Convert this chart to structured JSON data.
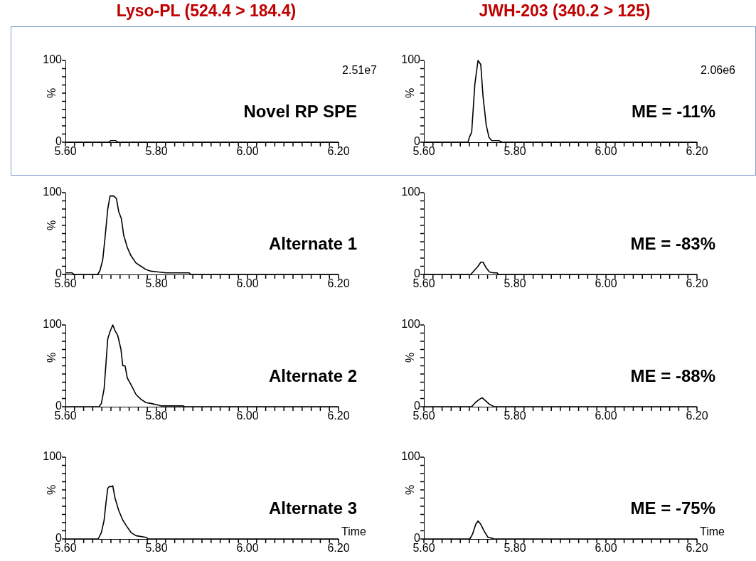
{
  "chart_data": [
    {
      "type": "line",
      "title": "Lyso-PL (524.4 > 184.4)",
      "ylabel": "%",
      "annotations": [
        "2.51e7",
        "Novel RP SPE"
      ],
      "xlim": [
        5.6,
        6.2
      ],
      "ylim": [
        0,
        100
      ],
      "xticks": [
        {
          "value": 5.6,
          "label": "5.60"
        },
        {
          "value": 5.62,
          "label": null
        },
        {
          "value": 5.64,
          "label": null
        },
        {
          "value": 5.66,
          "label": null
        },
        {
          "value": 5.68,
          "label": null
        },
        {
          "value": 5.7,
          "label": null
        },
        {
          "value": 5.72,
          "label": null
        },
        {
          "value": 5.74,
          "label": null
        },
        {
          "value": 5.76,
          "label": null
        },
        {
          "value": 5.78,
          "label": null
        },
        {
          "value": 5.8,
          "label": "5.80"
        },
        {
          "value": 5.82,
          "label": null
        },
        {
          "value": 5.84,
          "label": null
        },
        {
          "value": 5.86,
          "label": null
        },
        {
          "value": 5.88,
          "label": null
        },
        {
          "value": 5.9,
          "label": null
        },
        {
          "value": 5.92,
          "label": null
        },
        {
          "value": 5.94,
          "label": null
        },
        {
          "value": 5.96,
          "label": null
        },
        {
          "value": 5.98,
          "label": null
        },
        {
          "value": 6.0,
          "label": "6.00"
        },
        {
          "value": 6.02,
          "label": null
        },
        {
          "value": 6.04,
          "label": null
        },
        {
          "value": 6.06,
          "label": null
        },
        {
          "value": 6.08,
          "label": null
        },
        {
          "value": 6.1,
          "label": null
        },
        {
          "value": 6.12,
          "label": null
        },
        {
          "value": 6.14,
          "label": null
        },
        {
          "value": 6.16,
          "label": null
        },
        {
          "value": 6.18,
          "label": null
        },
        {
          "value": 6.2,
          "label": "6.20"
        }
      ],
      "yticks": [
        {
          "value": 0,
          "label": "0"
        },
        {
          "value": 10,
          "label": null
        },
        {
          "value": 20,
          "label": null
        },
        {
          "value": 30,
          "label": null
        },
        {
          "value": 40,
          "label": null
        },
        {
          "value": 50,
          "label": null
        },
        {
          "value": 60,
          "label": null
        },
        {
          "value": 70,
          "label": null
        },
        {
          "value": 80,
          "label": null
        },
        {
          "value": 90,
          "label": null
        },
        {
          "value": 100,
          "label": "100"
        }
      ],
      "grid": false,
      "legend": false,
      "marker": "none",
      "series": [
        {
          "color": "#000000",
          "x": [
            5.6,
            5.695,
            5.7,
            5.71,
            5.715,
            6.2
          ],
          "values": [
            0,
            0,
            2,
            2,
            0,
            0
          ]
        }
      ]
    },
    {
      "type": "line",
      "title": "JWH-203 (340.2 > 125)",
      "ylabel": "%",
      "annotations": [
        "2.06e6",
        "ME = -11%"
      ],
      "xlim": [
        5.6,
        6.2
      ],
      "ylim": [
        0,
        100
      ],
      "xticks": [
        {
          "value": 5.6,
          "label": "5.60"
        },
        {
          "value": 5.62,
          "label": null
        },
        {
          "value": 5.64,
          "label": null
        },
        {
          "value": 5.66,
          "label": null
        },
        {
          "value": 5.68,
          "label": null
        },
        {
          "value": 5.7,
          "label": null
        },
        {
          "value": 5.72,
          "label": null
        },
        {
          "value": 5.74,
          "label": null
        },
        {
          "value": 5.76,
          "label": null
        },
        {
          "value": 5.78,
          "label": null
        },
        {
          "value": 5.8,
          "label": "5.80"
        },
        {
          "value": 5.82,
          "label": null
        },
        {
          "value": 5.84,
          "label": null
        },
        {
          "value": 5.86,
          "label": null
        },
        {
          "value": 5.88,
          "label": null
        },
        {
          "value": 5.9,
          "label": null
        },
        {
          "value": 5.92,
          "label": null
        },
        {
          "value": 5.94,
          "label": null
        },
        {
          "value": 5.96,
          "label": null
        },
        {
          "value": 5.98,
          "label": null
        },
        {
          "value": 6.0,
          "label": "6.00"
        },
        {
          "value": 6.02,
          "label": null
        },
        {
          "value": 6.04,
          "label": null
        },
        {
          "value": 6.06,
          "label": null
        },
        {
          "value": 6.08,
          "label": null
        },
        {
          "value": 6.1,
          "label": null
        },
        {
          "value": 6.12,
          "label": null
        },
        {
          "value": 6.14,
          "label": null
        },
        {
          "value": 6.16,
          "label": null
        },
        {
          "value": 6.18,
          "label": null
        },
        {
          "value": 6.2,
          "label": "6.20"
        }
      ],
      "yticks": [
        {
          "value": 0,
          "label": "0"
        },
        {
          "value": 10,
          "label": null
        },
        {
          "value": 20,
          "label": null
        },
        {
          "value": 30,
          "label": null
        },
        {
          "value": 40,
          "label": null
        },
        {
          "value": 50,
          "label": null
        },
        {
          "value": 60,
          "label": null
        },
        {
          "value": 70,
          "label": null
        },
        {
          "value": 80,
          "label": null
        },
        {
          "value": 90,
          "label": null
        },
        {
          "value": 100,
          "label": "100"
        }
      ],
      "grid": false,
      "legend": false,
      "marker": "none",
      "series": [
        {
          "color": "#000000",
          "x": [
            5.6,
            5.697,
            5.7,
            5.705,
            5.712,
            5.719,
            5.725,
            5.73,
            5.737,
            5.743,
            5.749,
            5.765,
            5.771,
            6.2
          ],
          "values": [
            0,
            0,
            6,
            12,
            71,
            100,
            95,
            56,
            21,
            6,
            2,
            2,
            0,
            0
          ]
        }
      ]
    },
    {
      "type": "line",
      "ylabel": "%",
      "annotations": [
        "Alternate 1"
      ],
      "xlim": [
        5.6,
        6.2
      ],
      "ylim": [
        0,
        100
      ],
      "xticks": [
        {
          "value": 5.6,
          "label": "5.60"
        },
        {
          "value": 5.62,
          "label": null
        },
        {
          "value": 5.64,
          "label": null
        },
        {
          "value": 5.66,
          "label": null
        },
        {
          "value": 5.68,
          "label": null
        },
        {
          "value": 5.7,
          "label": null
        },
        {
          "value": 5.72,
          "label": null
        },
        {
          "value": 5.74,
          "label": null
        },
        {
          "value": 5.76,
          "label": null
        },
        {
          "value": 5.78,
          "label": null
        },
        {
          "value": 5.8,
          "label": "5.80"
        },
        {
          "value": 5.82,
          "label": null
        },
        {
          "value": 5.84,
          "label": null
        },
        {
          "value": 5.86,
          "label": null
        },
        {
          "value": 5.88,
          "label": null
        },
        {
          "value": 5.9,
          "label": null
        },
        {
          "value": 5.92,
          "label": null
        },
        {
          "value": 5.94,
          "label": null
        },
        {
          "value": 5.96,
          "label": null
        },
        {
          "value": 5.98,
          "label": null
        },
        {
          "value": 6.0,
          "label": "6.00"
        },
        {
          "value": 6.02,
          "label": null
        },
        {
          "value": 6.04,
          "label": null
        },
        {
          "value": 6.06,
          "label": null
        },
        {
          "value": 6.08,
          "label": null
        },
        {
          "value": 6.1,
          "label": null
        },
        {
          "value": 6.12,
          "label": null
        },
        {
          "value": 6.14,
          "label": null
        },
        {
          "value": 6.16,
          "label": null
        },
        {
          "value": 6.18,
          "label": null
        },
        {
          "value": 6.2,
          "label": "6.20"
        }
      ],
      "yticks": [
        {
          "value": 0,
          "label": "0"
        },
        {
          "value": 10,
          "label": null
        },
        {
          "value": 20,
          "label": null
        },
        {
          "value": 30,
          "label": null
        },
        {
          "value": 40,
          "label": null
        },
        {
          "value": 50,
          "label": null
        },
        {
          "value": 60,
          "label": null
        },
        {
          "value": 70,
          "label": null
        },
        {
          "value": 80,
          "label": null
        },
        {
          "value": 90,
          "label": null
        },
        {
          "value": 100,
          "label": "100"
        }
      ],
      "grid": false,
      "legend": false,
      "marker": "none",
      "series": [
        {
          "color": "#000000",
          "x": [
            5.6,
            5.614,
            5.619,
            5.671,
            5.676,
            5.682,
            5.687,
            5.693,
            5.698,
            5.706,
            5.712,
            5.717,
            5.723,
            5.728,
            5.736,
            5.744,
            5.755,
            5.766,
            5.777,
            5.788,
            5.804,
            5.821,
            5.872,
            5.875,
            6.2
          ],
          "values": [
            2,
            2,
            0,
            0,
            5,
            18,
            45,
            80,
            96,
            96,
            93,
            77,
            68,
            48,
            33,
            23,
            14,
            10,
            6,
            4,
            3,
            2,
            2,
            0,
            0
          ]
        }
      ]
    },
    {
      "type": "line",
      "annotations": [
        "ME = -83%"
      ],
      "xlim": [
        5.6,
        6.2
      ],
      "ylim": [
        0,
        100
      ],
      "xticks": [
        {
          "value": 5.6,
          "label": "5.60"
        },
        {
          "value": 5.62,
          "label": null
        },
        {
          "value": 5.64,
          "label": null
        },
        {
          "value": 5.66,
          "label": null
        },
        {
          "value": 5.68,
          "label": null
        },
        {
          "value": 5.7,
          "label": null
        },
        {
          "value": 5.72,
          "label": null
        },
        {
          "value": 5.74,
          "label": null
        },
        {
          "value": 5.76,
          "label": null
        },
        {
          "value": 5.78,
          "label": null
        },
        {
          "value": 5.8,
          "label": "5.80"
        },
        {
          "value": 5.82,
          "label": null
        },
        {
          "value": 5.84,
          "label": null
        },
        {
          "value": 5.86,
          "label": null
        },
        {
          "value": 5.88,
          "label": null
        },
        {
          "value": 5.9,
          "label": null
        },
        {
          "value": 5.92,
          "label": null
        },
        {
          "value": 5.94,
          "label": null
        },
        {
          "value": 5.96,
          "label": null
        },
        {
          "value": 5.98,
          "label": null
        },
        {
          "value": 6.0,
          "label": "6.00"
        },
        {
          "value": 6.02,
          "label": null
        },
        {
          "value": 6.04,
          "label": null
        },
        {
          "value": 6.06,
          "label": null
        },
        {
          "value": 6.08,
          "label": null
        },
        {
          "value": 6.1,
          "label": null
        },
        {
          "value": 6.12,
          "label": null
        },
        {
          "value": 6.14,
          "label": null
        },
        {
          "value": 6.16,
          "label": null
        },
        {
          "value": 6.18,
          "label": null
        },
        {
          "value": 6.2,
          "label": "6.20"
        }
      ],
      "yticks": [
        {
          "value": 0,
          "label": "0"
        },
        {
          "value": 10,
          "label": null
        },
        {
          "value": 20,
          "label": null
        },
        {
          "value": 30,
          "label": null
        },
        {
          "value": 40,
          "label": null
        },
        {
          "value": 50,
          "label": null
        },
        {
          "value": 60,
          "label": null
        },
        {
          "value": 70,
          "label": null
        },
        {
          "value": 80,
          "label": null
        },
        {
          "value": 90,
          "label": null
        },
        {
          "value": 100,
          "label": "100"
        }
      ],
      "grid": false,
      "legend": false,
      "marker": "none",
      "series": [
        {
          "color": "#000000",
          "x": [
            5.6,
            5.703,
            5.711,
            5.719,
            5.725,
            5.73,
            5.737,
            5.744,
            5.753,
            5.761,
            5.763,
            6.2
          ],
          "values": [
            0,
            0,
            5,
            10,
            15,
            15,
            8,
            3,
            2,
            2,
            0,
            0
          ]
        }
      ]
    },
    {
      "type": "line",
      "ylabel": "%",
      "annotations": [
        "Alternate 2"
      ],
      "xlim": [
        5.6,
        6.2
      ],
      "ylim": [
        0,
        100
      ],
      "xticks": [
        {
          "value": 5.6,
          "label": "5.60"
        },
        {
          "value": 5.62,
          "label": null
        },
        {
          "value": 5.64,
          "label": null
        },
        {
          "value": 5.66,
          "label": null
        },
        {
          "value": 5.68,
          "label": null
        },
        {
          "value": 5.7,
          "label": null
        },
        {
          "value": 5.72,
          "label": null
        },
        {
          "value": 5.74,
          "label": null
        },
        {
          "value": 5.76,
          "label": null
        },
        {
          "value": 5.78,
          "label": null
        },
        {
          "value": 5.8,
          "label": "5.80"
        },
        {
          "value": 5.82,
          "label": null
        },
        {
          "value": 5.84,
          "label": null
        },
        {
          "value": 5.86,
          "label": null
        },
        {
          "value": 5.88,
          "label": null
        },
        {
          "value": 5.9,
          "label": null
        },
        {
          "value": 5.92,
          "label": null
        },
        {
          "value": 5.94,
          "label": null
        },
        {
          "value": 5.96,
          "label": null
        },
        {
          "value": 5.98,
          "label": null
        },
        {
          "value": 6.0,
          "label": "6.00"
        },
        {
          "value": 6.02,
          "label": null
        },
        {
          "value": 6.04,
          "label": null
        },
        {
          "value": 6.06,
          "label": null
        },
        {
          "value": 6.08,
          "label": null
        },
        {
          "value": 6.1,
          "label": null
        },
        {
          "value": 6.12,
          "label": null
        },
        {
          "value": 6.14,
          "label": null
        },
        {
          "value": 6.16,
          "label": null
        },
        {
          "value": 6.18,
          "label": null
        },
        {
          "value": 6.2,
          "label": "6.20"
        }
      ],
      "yticks": [
        {
          "value": 0,
          "label": "0"
        },
        {
          "value": 10,
          "label": null
        },
        {
          "value": 20,
          "label": null
        },
        {
          "value": 30,
          "label": null
        },
        {
          "value": 40,
          "label": null
        },
        {
          "value": 50,
          "label": null
        },
        {
          "value": 60,
          "label": null
        },
        {
          "value": 70,
          "label": null
        },
        {
          "value": 80,
          "label": null
        },
        {
          "value": 90,
          "label": null
        },
        {
          "value": 100,
          "label": "100"
        }
      ],
      "grid": false,
      "legend": false,
      "marker": "none",
      "series": [
        {
          "color": "#000000",
          "x": [
            5.6,
            5.674,
            5.679,
            5.685,
            5.693,
            5.698,
            5.704,
            5.709,
            5.715,
            5.722,
            5.726,
            5.731,
            5.736,
            5.744,
            5.755,
            5.766,
            5.777,
            5.788,
            5.804,
            5.81,
            5.859,
            5.862,
            6.2
          ],
          "values": [
            0,
            0,
            4,
            22,
            83,
            92,
            100,
            93,
            87,
            70,
            50,
            50,
            35,
            27,
            15,
            9,
            5,
            4,
            2,
            1,
            1,
            0,
            0
          ]
        }
      ]
    },
    {
      "type": "line",
      "ylabel": "%",
      "annotations": [
        "ME = -88%"
      ],
      "xlim": [
        5.6,
        6.2
      ],
      "ylim": [
        0,
        100
      ],
      "xticks": [
        {
          "value": 5.6,
          "label": "5.60"
        },
        {
          "value": 5.62,
          "label": null
        },
        {
          "value": 5.64,
          "label": null
        },
        {
          "value": 5.66,
          "label": null
        },
        {
          "value": 5.68,
          "label": null
        },
        {
          "value": 5.7,
          "label": null
        },
        {
          "value": 5.72,
          "label": null
        },
        {
          "value": 5.74,
          "label": null
        },
        {
          "value": 5.76,
          "label": null
        },
        {
          "value": 5.78,
          "label": null
        },
        {
          "value": 5.8,
          "label": "5.80"
        },
        {
          "value": 5.82,
          "label": null
        },
        {
          "value": 5.84,
          "label": null
        },
        {
          "value": 5.86,
          "label": null
        },
        {
          "value": 5.88,
          "label": null
        },
        {
          "value": 5.9,
          "label": null
        },
        {
          "value": 5.92,
          "label": null
        },
        {
          "value": 5.94,
          "label": null
        },
        {
          "value": 5.96,
          "label": null
        },
        {
          "value": 5.98,
          "label": null
        },
        {
          "value": 6.0,
          "label": "6.00"
        },
        {
          "value": 6.02,
          "label": null
        },
        {
          "value": 6.04,
          "label": null
        },
        {
          "value": 6.06,
          "label": null
        },
        {
          "value": 6.08,
          "label": null
        },
        {
          "value": 6.1,
          "label": null
        },
        {
          "value": 6.12,
          "label": null
        },
        {
          "value": 6.14,
          "label": null
        },
        {
          "value": 6.16,
          "label": null
        },
        {
          "value": 6.18,
          "label": null
        },
        {
          "value": 6.2,
          "label": "6.20"
        }
      ],
      "yticks": [
        {
          "value": 0,
          "label": "0"
        },
        {
          "value": 10,
          "label": null
        },
        {
          "value": 20,
          "label": null
        },
        {
          "value": 30,
          "label": null
        },
        {
          "value": 40,
          "label": null
        },
        {
          "value": 50,
          "label": null
        },
        {
          "value": 60,
          "label": null
        },
        {
          "value": 70,
          "label": null
        },
        {
          "value": 80,
          "label": null
        },
        {
          "value": 90,
          "label": null
        },
        {
          "value": 100,
          "label": "100"
        }
      ],
      "grid": false,
      "legend": false,
      "marker": "none",
      "series": [
        {
          "color": "#000000",
          "x": [
            5.6,
            5.705,
            5.713,
            5.722,
            5.728,
            5.736,
            5.744,
            5.751,
            5.754,
            6.2
          ],
          "values": [
            0,
            0,
            5,
            9,
            11,
            7,
            3,
            1,
            0,
            0
          ]
        }
      ]
    },
    {
      "type": "line",
      "ylabel": "%",
      "xlabel": "Time",
      "annotations": [
        "Alternate 3"
      ],
      "xlim": [
        5.6,
        6.2
      ],
      "ylim": [
        0,
        100
      ],
      "xticks": [
        {
          "value": 5.6,
          "label": "5.60"
        },
        {
          "value": 5.62,
          "label": null
        },
        {
          "value": 5.64,
          "label": null
        },
        {
          "value": 5.66,
          "label": null
        },
        {
          "value": 5.68,
          "label": null
        },
        {
          "value": 5.7,
          "label": null
        },
        {
          "value": 5.72,
          "label": null
        },
        {
          "value": 5.74,
          "label": null
        },
        {
          "value": 5.76,
          "label": null
        },
        {
          "value": 5.78,
          "label": null
        },
        {
          "value": 5.8,
          "label": "5.80"
        },
        {
          "value": 5.82,
          "label": null
        },
        {
          "value": 5.84,
          "label": null
        },
        {
          "value": 5.86,
          "label": null
        },
        {
          "value": 5.88,
          "label": null
        },
        {
          "value": 5.9,
          "label": null
        },
        {
          "value": 5.92,
          "label": null
        },
        {
          "value": 5.94,
          "label": null
        },
        {
          "value": 5.96,
          "label": null
        },
        {
          "value": 5.98,
          "label": null
        },
        {
          "value": 6.0,
          "label": "6.00"
        },
        {
          "value": 6.02,
          "label": null
        },
        {
          "value": 6.04,
          "label": null
        },
        {
          "value": 6.06,
          "label": null
        },
        {
          "value": 6.08,
          "label": null
        },
        {
          "value": 6.1,
          "label": null
        },
        {
          "value": 6.12,
          "label": null
        },
        {
          "value": 6.14,
          "label": null
        },
        {
          "value": 6.16,
          "label": null
        },
        {
          "value": 6.18,
          "label": null
        },
        {
          "value": 6.2,
          "label": "6.20"
        }
      ],
      "yticks": [
        {
          "value": 0,
          "label": "0"
        },
        {
          "value": 10,
          "label": null
        },
        {
          "value": 20,
          "label": null
        },
        {
          "value": 30,
          "label": null
        },
        {
          "value": 40,
          "label": null
        },
        {
          "value": 50,
          "label": null
        },
        {
          "value": 60,
          "label": null
        },
        {
          "value": 70,
          "label": null
        },
        {
          "value": 80,
          "label": null
        },
        {
          "value": 90,
          "label": null
        },
        {
          "value": 100,
          "label": "100"
        }
      ],
      "grid": false,
      "legend": false,
      "marker": "none",
      "series": [
        {
          "color": "#000000",
          "x": [
            5.6,
            5.672,
            5.679,
            5.685,
            5.689,
            5.693,
            5.696,
            5.701,
            5.704,
            5.709,
            5.717,
            5.726,
            5.734,
            5.744,
            5.755,
            5.777,
            5.782,
            6.2
          ],
          "values": [
            0,
            0,
            8,
            23,
            44,
            62,
            64,
            64,
            65,
            50,
            35,
            23,
            16,
            8,
            4,
            2,
            0,
            0
          ]
        }
      ]
    },
    {
      "type": "line",
      "ylabel": "%",
      "xlabel": "Time",
      "annotations": [
        "ME = -75%"
      ],
      "xlim": [
        5.6,
        6.2
      ],
      "ylim": [
        0,
        100
      ],
      "xticks": [
        {
          "value": 5.6,
          "label": "5.60"
        },
        {
          "value": 5.62,
          "label": null
        },
        {
          "value": 5.64,
          "label": null
        },
        {
          "value": 5.66,
          "label": null
        },
        {
          "value": 5.68,
          "label": null
        },
        {
          "value": 5.7,
          "label": null
        },
        {
          "value": 5.72,
          "label": null
        },
        {
          "value": 5.74,
          "label": null
        },
        {
          "value": 5.76,
          "label": null
        },
        {
          "value": 5.78,
          "label": null
        },
        {
          "value": 5.8,
          "label": "5.80"
        },
        {
          "value": 5.82,
          "label": null
        },
        {
          "value": 5.84,
          "label": null
        },
        {
          "value": 5.86,
          "label": null
        },
        {
          "value": 5.88,
          "label": null
        },
        {
          "value": 5.9,
          "label": null
        },
        {
          "value": 5.92,
          "label": null
        },
        {
          "value": 5.94,
          "label": null
        },
        {
          "value": 5.96,
          "label": null
        },
        {
          "value": 5.98,
          "label": null
        },
        {
          "value": 6.0,
          "label": "6.00"
        },
        {
          "value": 6.02,
          "label": null
        },
        {
          "value": 6.04,
          "label": null
        },
        {
          "value": 6.06,
          "label": null
        },
        {
          "value": 6.08,
          "label": null
        },
        {
          "value": 6.1,
          "label": null
        },
        {
          "value": 6.12,
          "label": null
        },
        {
          "value": 6.14,
          "label": null
        },
        {
          "value": 6.16,
          "label": null
        },
        {
          "value": 6.18,
          "label": null
        },
        {
          "value": 6.2,
          "label": "6.20"
        }
      ],
      "yticks": [
        {
          "value": 0,
          "label": "0"
        },
        {
          "value": 10,
          "label": null
        },
        {
          "value": 20,
          "label": null
        },
        {
          "value": 30,
          "label": null
        },
        {
          "value": 40,
          "label": null
        },
        {
          "value": 50,
          "label": null
        },
        {
          "value": 60,
          "label": null
        },
        {
          "value": 70,
          "label": null
        },
        {
          "value": 80,
          "label": null
        },
        {
          "value": 90,
          "label": null
        },
        {
          "value": 100,
          "label": "100"
        }
      ],
      "grid": false,
      "legend": false,
      "marker": "none",
      "series": [
        {
          "color": "#000000",
          "x": [
            5.6,
            5.701,
            5.707,
            5.714,
            5.719,
            5.725,
            5.733,
            5.741,
            5.75,
            5.753,
            6.2
          ],
          "values": [
            0,
            0,
            6,
            18,
            22,
            18,
            9,
            2,
            1,
            0,
            0
          ]
        }
      ]
    }
  ]
}
